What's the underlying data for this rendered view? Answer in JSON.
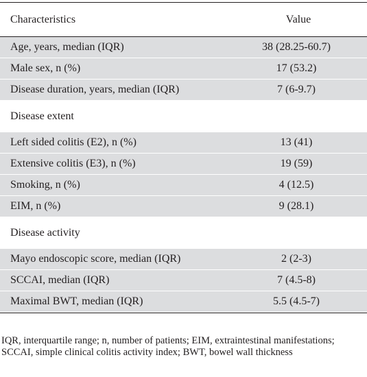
{
  "table": {
    "header": {
      "label": "Characteristics",
      "value": "Value"
    },
    "rows": [
      {
        "label": "Age, years, median (IQR)",
        "value": "38 (28.25-60.7)",
        "kind": "shaded"
      },
      {
        "label": "Male sex, n (%)",
        "value": "17 (53.2)",
        "kind": "shaded"
      },
      {
        "label": "Disease duration, years, median (IQR)",
        "value": "7 (6-9.7)",
        "kind": "shaded"
      },
      {
        "label": "Disease  extent",
        "value": "",
        "kind": "section"
      },
      {
        "label": "Left sided colitis (E2), n (%)",
        "value": "13 (41)",
        "kind": "shaded"
      },
      {
        "label": "Extensive colitis (E3), n (%)",
        "value": "19 (59)",
        "kind": "shaded"
      },
      {
        "label": "Smoking, n (%)",
        "value": "4 (12.5)",
        "kind": "shaded"
      },
      {
        "label": "EIM, n (%)",
        "value": "9 (28.1)",
        "kind": "shaded"
      },
      {
        "label": "Disease  activity",
        "value": "",
        "kind": "section"
      },
      {
        "label": "Mayo endoscopic score, median (IQR)",
        "value": "2 (2-3)",
        "kind": "shaded"
      },
      {
        "label": "SCCAI, median (IQR)",
        "value": "7 (4.5-8)",
        "kind": "shaded"
      },
      {
        "label": "Maximal BWT, median (IQR)",
        "value": "5.5 (4.5-7)",
        "kind": "shaded"
      }
    ]
  },
  "footnote": "IQR, interquartile range; n, number of patients; EIM, extraintestinal manifestations; SCCAI, simple clinical colitis activity index; BWT, bowel wall thickness"
}
